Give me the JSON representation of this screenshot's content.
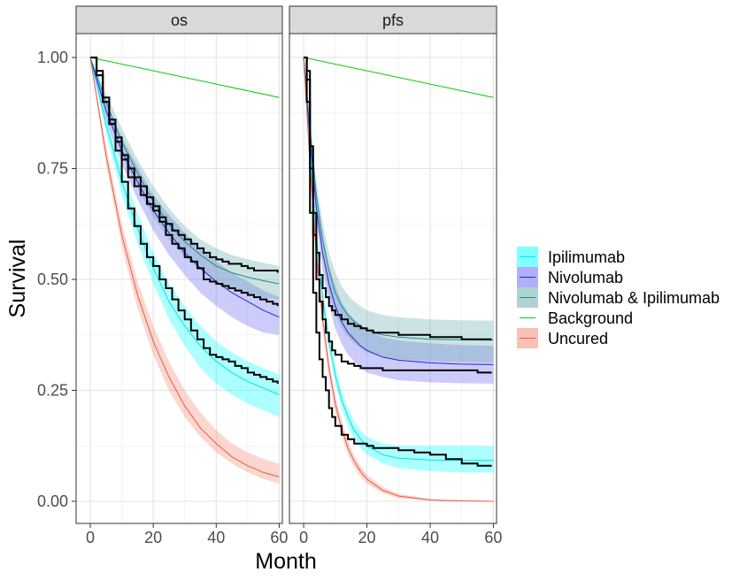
{
  "chart_data": {
    "type": "line",
    "xlabel": "Month",
    "ylabel": "Survival",
    "xlim": [
      0,
      60
    ],
    "ylim": [
      0,
      1
    ],
    "x_ticks": [
      0,
      20,
      40,
      60
    ],
    "y_ticks": [
      0.0,
      0.25,
      0.5,
      0.75,
      1.0
    ],
    "y_tick_labels": [
      "0.00",
      "0.25",
      "0.50",
      "0.75",
      "1.00"
    ],
    "x_tick_labels": [
      "0",
      "20",
      "40",
      "60"
    ],
    "grid": true,
    "legend_position": "right",
    "legend": [
      {
        "name": "Ipilimumab",
        "color": "#00E5E5"
      },
      {
        "name": "Nivolumab",
        "color": "#2424DC"
      },
      {
        "name": "Nivolumab & Ipilimumab",
        "color": "#1F8C8C"
      },
      {
        "name": "Background",
        "color": "#00CC00"
      },
      {
        "name": "Uncured",
        "color": "#EE5A45"
      }
    ],
    "panels": [
      {
        "title": "os",
        "model_series": [
          {
            "name": "Ipilimumab",
            "color": "#00E5E5",
            "fill": "#00FFFF",
            "x": [
              0,
              5,
              10,
              15,
              20,
              25,
              30,
              35,
              40,
              45,
              50,
              55,
              60
            ],
            "y": [
              1.0,
              0.85,
              0.72,
              0.615,
              0.525,
              0.45,
              0.395,
              0.35,
              0.315,
              0.29,
              0.27,
              0.255,
              0.24
            ],
            "lower": [
              1.0,
              0.83,
              0.69,
              0.58,
              0.49,
              0.41,
              0.35,
              0.3,
              0.265,
              0.24,
              0.22,
              0.205,
              0.19
            ],
            "upper": [
              1.0,
              0.87,
              0.75,
              0.65,
              0.56,
              0.49,
              0.44,
              0.395,
              0.36,
              0.335,
              0.315,
              0.3,
              0.285
            ]
          },
          {
            "name": "Nivolumab",
            "color": "#2424DC",
            "fill": "#6060F0",
            "x": [
              0,
              5,
              10,
              15,
              20,
              25,
              30,
              35,
              40,
              45,
              50,
              55,
              60
            ],
            "y": [
              1.0,
              0.88,
              0.79,
              0.72,
              0.655,
              0.605,
              0.56,
              0.525,
              0.495,
              0.47,
              0.45,
              0.43,
              0.415
            ],
            "lower": [
              1.0,
              0.86,
              0.76,
              0.68,
              0.61,
              0.555,
              0.51,
              0.47,
              0.44,
              0.415,
              0.395,
              0.38,
              0.375
            ],
            "upper": [
              1.0,
              0.9,
              0.82,
              0.755,
              0.69,
              0.645,
              0.605,
              0.57,
              0.54,
              0.515,
              0.495,
              0.475,
              0.46
            ]
          },
          {
            "name": "Nivolumab & Ipilimumab",
            "color": "#1F8C8C",
            "fill": "#5FA8A8",
            "x": [
              0,
              5,
              10,
              15,
              20,
              25,
              30,
              35,
              40,
              45,
              50,
              55,
              60
            ],
            "y": [
              1.0,
              0.9,
              0.81,
              0.74,
              0.675,
              0.625,
              0.585,
              0.555,
              0.53,
              0.515,
              0.505,
              0.497,
              0.49
            ],
            "lower": [
              1.0,
              0.88,
              0.78,
              0.705,
              0.64,
              0.59,
              0.55,
              0.52,
              0.495,
              0.48,
              0.468,
              0.46,
              0.455
            ],
            "upper": [
              1.0,
              0.92,
              0.84,
              0.77,
              0.71,
              0.66,
              0.62,
              0.59,
              0.57,
              0.555,
              0.545,
              0.537,
              0.53
            ]
          },
          {
            "name": "Background",
            "color": "#00CC00",
            "fill": "none",
            "x": [
              0,
              60
            ],
            "y": [
              1.0,
              0.91
            ],
            "lower": [],
            "upper": []
          },
          {
            "name": "Uncured",
            "color": "#EE5A45",
            "fill": "#F4826E",
            "x": [
              0,
              5,
              10,
              15,
              20,
              25,
              30,
              35,
              40,
              45,
              50,
              55,
              60
            ],
            "y": [
              1.0,
              0.78,
              0.6,
              0.465,
              0.36,
              0.28,
              0.215,
              0.165,
              0.13,
              0.1,
              0.08,
              0.065,
              0.055
            ],
            "lower": [
              1.0,
              0.76,
              0.575,
              0.435,
              0.33,
              0.25,
              0.19,
              0.145,
              0.11,
              0.085,
              0.065,
              0.05,
              0.04
            ],
            "upper": [
              1.0,
              0.8,
              0.625,
              0.495,
              0.395,
              0.315,
              0.25,
              0.2,
              0.16,
              0.13,
              0.11,
              0.095,
              0.085
            ]
          }
        ],
        "km_curves": [
          {
            "x": [
              0,
              2,
              4,
              6,
              8,
              10,
              12,
              14,
              16,
              18,
              20,
              22,
              24,
              26,
              28,
              30,
              32,
              34,
              36,
              38,
              40,
              42,
              44,
              46,
              48,
              50,
              52,
              54,
              56,
              58,
              59.5
            ],
            "y": [
              1.0,
              0.96,
              0.9,
              0.85,
              0.79,
              0.72,
              0.66,
              0.62,
              0.58,
              0.55,
              0.53,
              0.5,
              0.48,
              0.455,
              0.43,
              0.41,
              0.385,
              0.365,
              0.345,
              0.33,
              0.325,
              0.32,
              0.315,
              0.305,
              0.3,
              0.29,
              0.285,
              0.28,
              0.275,
              0.27,
              0.265
            ]
          },
          {
            "x": [
              0,
              2,
              4,
              6,
              8,
              10,
              12,
              14,
              16,
              18,
              20,
              22,
              24,
              26,
              28,
              30,
              32,
              34,
              36,
              38,
              40,
              42,
              44,
              46,
              48,
              50,
              52,
              54,
              56,
              58,
              59.5
            ],
            "y": [
              1.0,
              0.96,
              0.9,
              0.85,
              0.81,
              0.77,
              0.73,
              0.71,
              0.69,
              0.67,
              0.655,
              0.63,
              0.6,
              0.58,
              0.57,
              0.55,
              0.54,
              0.525,
              0.5,
              0.495,
              0.49,
              0.485,
              0.48,
              0.475,
              0.47,
              0.465,
              0.46,
              0.455,
              0.45,
              0.445,
              0.44
            ]
          },
          {
            "x": [
              0,
              2,
              4,
              6,
              8,
              10,
              12,
              14,
              16,
              18,
              20,
              22,
              24,
              26,
              28,
              30,
              32,
              34,
              36,
              38,
              40,
              42,
              44,
              46,
              48,
              50,
              52,
              54,
              56,
              58,
              59.5
            ],
            "y": [
              1.0,
              0.97,
              0.91,
              0.86,
              0.82,
              0.78,
              0.75,
              0.73,
              0.71,
              0.685,
              0.665,
              0.64,
              0.625,
              0.61,
              0.6,
              0.59,
              0.58,
              0.57,
              0.56,
              0.55,
              0.545,
              0.54,
              0.535,
              0.535,
              0.53,
              0.525,
              0.52,
              0.52,
              0.52,
              0.52,
              0.515
            ]
          }
        ]
      },
      {
        "title": "pfs",
        "model_series": [
          {
            "name": "Ipilimumab",
            "color": "#00E5E5",
            "fill": "#00FFFF",
            "x": [
              0,
              2,
              4,
              6,
              8,
              10,
              12,
              14,
              16,
              18,
              20,
              25,
              30,
              40,
              50,
              60
            ],
            "y": [
              1.0,
              0.79,
              0.6,
              0.46,
              0.36,
              0.285,
              0.23,
              0.19,
              0.16,
              0.14,
              0.125,
              0.105,
              0.097,
              0.093,
              0.092,
              0.092
            ],
            "lower": [
              1.0,
              0.77,
              0.58,
              0.44,
              0.34,
              0.265,
              0.21,
              0.17,
              0.14,
              0.12,
              0.105,
              0.085,
              0.075,
              0.068,
              0.065,
              0.065
            ],
            "upper": [
              1.0,
              0.81,
              0.62,
              0.48,
              0.38,
              0.305,
              0.25,
              0.21,
              0.18,
              0.16,
              0.145,
              0.13,
              0.125,
              0.125,
              0.125,
              0.125
            ]
          },
          {
            "name": "Nivolumab",
            "color": "#2424DC",
            "fill": "#6060F0",
            "x": [
              0,
              2,
              4,
              6,
              8,
              10,
              12,
              14,
              16,
              18,
              20,
              25,
              30,
              40,
              50,
              60
            ],
            "y": [
              1.0,
              0.82,
              0.66,
              0.56,
              0.49,
              0.44,
              0.405,
              0.38,
              0.365,
              0.35,
              0.34,
              0.325,
              0.318,
              0.312,
              0.309,
              0.308
            ],
            "lower": [
              1.0,
              0.8,
              0.63,
              0.52,
              0.44,
              0.39,
              0.355,
              0.33,
              0.315,
              0.3,
              0.29,
              0.28,
              0.273,
              0.268,
              0.266,
              0.265
            ],
            "upper": [
              1.0,
              0.84,
              0.69,
              0.6,
              0.53,
              0.485,
              0.45,
              0.425,
              0.41,
              0.395,
              0.385,
              0.37,
              0.362,
              0.356,
              0.352,
              0.35
            ]
          },
          {
            "name": "Nivolumab & Ipilimumab",
            "color": "#1F8C8C",
            "fill": "#5FA8A8",
            "x": [
              0,
              2,
              4,
              6,
              8,
              10,
              12,
              14,
              16,
              18,
              20,
              25,
              30,
              40,
              50,
              60
            ],
            "y": [
              1.0,
              0.84,
              0.69,
              0.59,
              0.52,
              0.47,
              0.44,
              0.42,
              0.405,
              0.395,
              0.385,
              0.375,
              0.37,
              0.365,
              0.364,
              0.363
            ],
            "lower": [
              1.0,
              0.82,
              0.66,
              0.55,
              0.47,
              0.42,
              0.39,
              0.37,
              0.355,
              0.345,
              0.335,
              0.325,
              0.32,
              0.316,
              0.314,
              0.313
            ],
            "upper": [
              1.0,
              0.86,
              0.72,
              0.63,
              0.56,
              0.515,
              0.485,
              0.465,
              0.45,
              0.44,
              0.43,
              0.42,
              0.415,
              0.41,
              0.408,
              0.407
            ]
          },
          {
            "name": "Background",
            "color": "#00CC00",
            "fill": "none",
            "x": [
              0,
              60
            ],
            "y": [
              1.0,
              0.91
            ],
            "lower": [],
            "upper": []
          },
          {
            "name": "Uncured",
            "color": "#EE5A45",
            "fill": "#F4826E",
            "x": [
              0,
              2,
              4,
              6,
              8,
              10,
              12,
              14,
              16,
              18,
              20,
              25,
              30,
              40,
              50,
              60
            ],
            "y": [
              1.0,
              0.76,
              0.56,
              0.41,
              0.3,
              0.22,
              0.165,
              0.12,
              0.09,
              0.067,
              0.05,
              0.025,
              0.012,
              0.003,
              0.001,
              0.0
            ],
            "lower": [
              1.0,
              0.74,
              0.54,
              0.39,
              0.28,
              0.2,
              0.148,
              0.105,
              0.077,
              0.055,
              0.04,
              0.018,
              0.007,
              0.001,
              0.0,
              0.0
            ],
            "upper": [
              1.0,
              0.78,
              0.58,
              0.43,
              0.32,
              0.24,
              0.182,
              0.135,
              0.103,
              0.079,
              0.06,
              0.032,
              0.017,
              0.005,
              0.002,
              0.001
            ]
          }
        ],
        "km_curves": [
          {
            "x": [
              0,
              1,
              2,
              3,
              4,
              5,
              6,
              7,
              8,
              9,
              10,
              12,
              14,
              16,
              18,
              20,
              22,
              25,
              30,
              35,
              40,
              45,
              50,
              55,
              59.5
            ],
            "y": [
              1.0,
              0.95,
              0.75,
              0.6,
              0.5,
              0.45,
              0.41,
              0.38,
              0.36,
              0.34,
              0.33,
              0.315,
              0.31,
              0.305,
              0.3,
              0.3,
              0.3,
              0.295,
              0.295,
              0.295,
              0.295,
              0.295,
              0.295,
              0.29,
              0.29
            ]
          },
          {
            "x": [
              0,
              1,
              2,
              3,
              4,
              5,
              6,
              7,
              8,
              9,
              10,
              12,
              14,
              16,
              18,
              20,
              22,
              25,
              30,
              35,
              40,
              45,
              50,
              55,
              59.5
            ],
            "y": [
              1.0,
              0.97,
              0.8,
              0.65,
              0.56,
              0.51,
              0.48,
              0.46,
              0.44,
              0.43,
              0.42,
              0.41,
              0.4,
              0.395,
              0.39,
              0.385,
              0.38,
              0.38,
              0.375,
              0.375,
              0.37,
              0.37,
              0.365,
              0.365,
              0.365
            ]
          },
          {
            "x": [
              0,
              1,
              2,
              3,
              4,
              5,
              6,
              7,
              8,
              9,
              10,
              12,
              14,
              16,
              18,
              20,
              22,
              25,
              30,
              35,
              40,
              45,
              50,
              55,
              59.5
            ],
            "y": [
              1.0,
              0.9,
              0.65,
              0.47,
              0.38,
              0.32,
              0.28,
              0.25,
              0.21,
              0.19,
              0.17,
              0.15,
              0.14,
              0.13,
              0.13,
              0.125,
              0.12,
              0.12,
              0.115,
              0.11,
              0.105,
              0.095,
              0.085,
              0.08,
              0.08
            ]
          }
        ]
      }
    ]
  }
}
